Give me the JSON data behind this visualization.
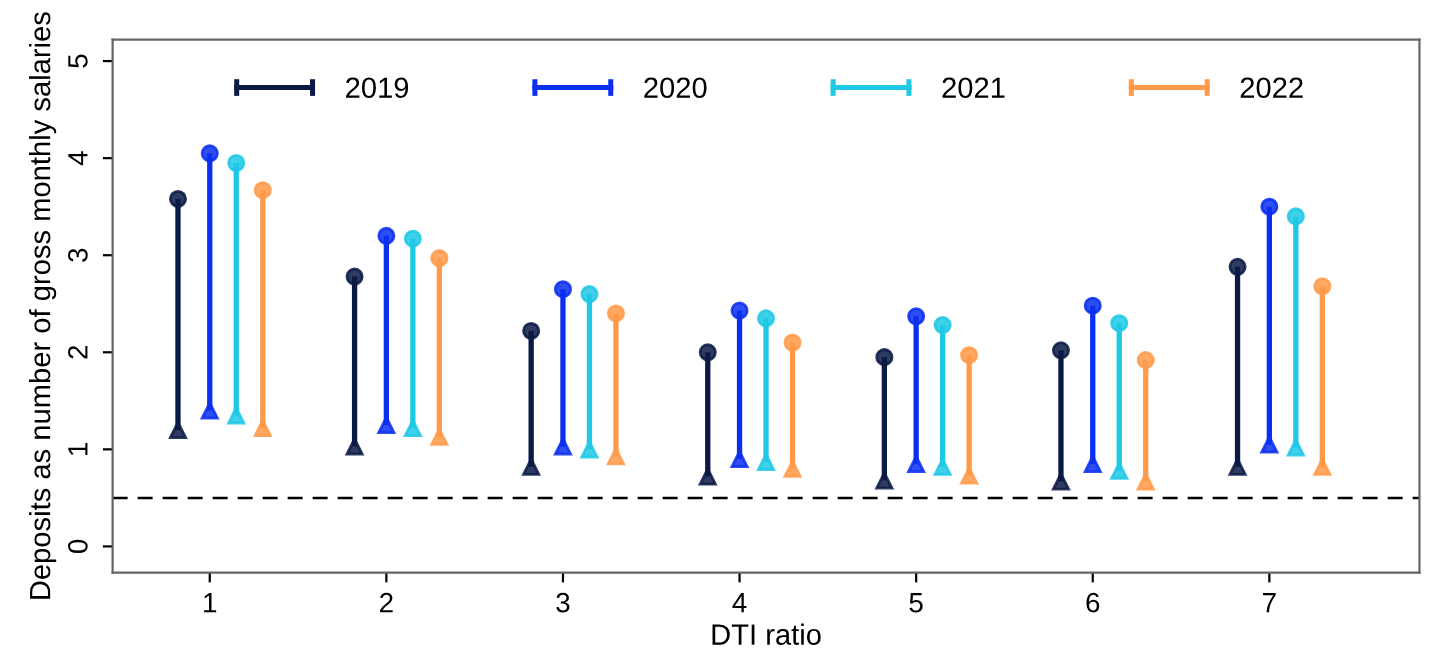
{
  "chart_data": {
    "type": "bar",
    "xlabel": "DTI ratio",
    "ylabel": "Deposits as number of gross monthly salaries",
    "categories": [
      "1",
      "2",
      "3",
      "4",
      "5",
      "6",
      "7"
    ],
    "series": [
      {
        "name": "2019",
        "color": "#0b1a45",
        "base": [
          1.2,
          1.03,
          0.82,
          0.72,
          0.68,
          0.67,
          0.82
        ],
        "values": [
          2.38,
          1.75,
          1.4,
          1.28,
          1.27,
          1.35,
          2.06
        ]
      },
      {
        "name": "2020",
        "color": "#0a2ff0",
        "base": [
          1.4,
          1.25,
          1.03,
          0.9,
          0.85,
          0.85,
          1.05
        ],
        "values": [
          2.65,
          1.95,
          1.62,
          1.53,
          1.52,
          1.63,
          2.45
        ]
      },
      {
        "name": "2021",
        "color": "#1ec8e6",
        "base": [
          1.35,
          1.22,
          1.0,
          0.87,
          0.82,
          0.78,
          1.02
        ],
        "values": [
          2.6,
          1.95,
          1.6,
          1.48,
          1.46,
          1.52,
          2.38
        ]
      },
      {
        "name": "2022",
        "color": "#ff9a4a",
        "base": [
          1.22,
          1.13,
          0.93,
          0.8,
          0.73,
          0.67,
          0.82
        ],
        "values": [
          2.45,
          1.84,
          1.47,
          1.3,
          1.24,
          1.25,
          1.86
        ]
      }
    ],
    "ylim": [
      -0.27,
      5.22
    ],
    "yticks": [
      0,
      1,
      2,
      3,
      4,
      5
    ],
    "ref_lines": [
      {
        "axis": "y",
        "value": 0.5,
        "color": "#000000",
        "line_style": "dashed"
      }
    ],
    "legend": "top",
    "grid": false
  }
}
